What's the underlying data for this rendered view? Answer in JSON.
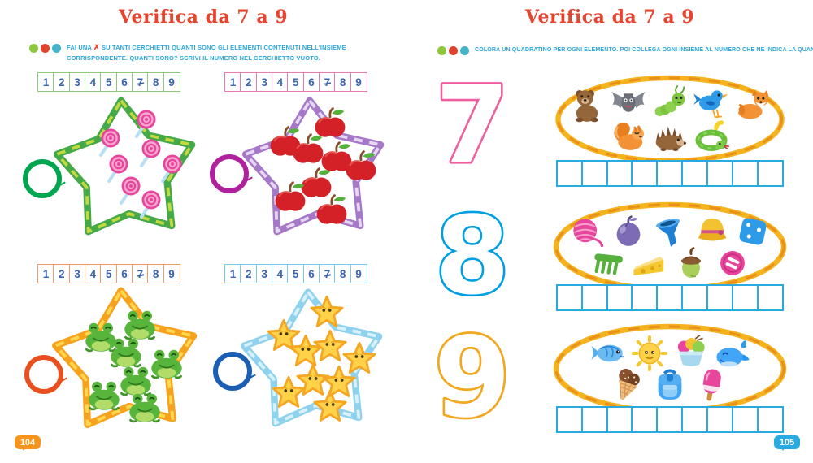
{
  "colors": {
    "title": "#e8432d",
    "instruction_text": "#2ba7dd",
    "strip_number": "#3a64ad"
  },
  "instruction_dot_colors": [
    "#8cc63e",
    "#e1432c",
    "#45b4c8"
  ],
  "left_page": {
    "title": "Verifica da 7 a 9",
    "instruction": {
      "pre": "FAI UNA",
      "x_mark": "✗",
      "post": "SU TANTI CERCHIETTI QUANTI SONO GLI ELEMENTI CONTENUTI NELL'INSIEME CORRISPONDENTE. QUANTI SONO? SCRIVI IL NUMERO NEL CERCHIETTO VUOTO."
    },
    "strip_numbers": [
      "1",
      "2",
      "3",
      "4",
      "5",
      "6",
      "7",
      "8",
      "9"
    ],
    "sets": [
      {
        "name": "lollipops",
        "item": "lollipop",
        "count": 7,
        "strip_color": "#8cc87e",
        "star_color": "#44a948",
        "star_accent": "#c3d93f",
        "circle_color": "#00a550"
      },
      {
        "name": "apples",
        "item": "apple",
        "count": 8,
        "strip_color": "#e879b5",
        "star_color": "#a678c8",
        "star_accent": "#e6d7f2",
        "circle_color": "#b0229d"
      },
      {
        "name": "frogs",
        "item": "frog",
        "count": 7,
        "strip_color": "#f09a6c",
        "star_color": "#f6a21d",
        "star_accent": "#ffd74f",
        "circle_color": "#e8511f"
      },
      {
        "name": "starfish",
        "item": "starfish",
        "count": 9,
        "strip_color": "#79c9e8",
        "star_color": "#8fd2ee",
        "star_accent": "#d9f1fb",
        "circle_color": "#1b5fb5"
      }
    ],
    "page_number": "104",
    "badge_color": "#f7941d"
  },
  "right_page": {
    "title": "Verifica da 7 a 9",
    "instruction": "COLORA UN QUADRATINO PER OGNI ELEMENTO. POI COLLEGA OGNI INSIEME AL NUMERO CHE NE INDICA LA QUANTITÀ.",
    "rows": [
      {
        "numeral": "7",
        "numeral_color": "#ee5fa0",
        "item_count": 8,
        "squares": 9,
        "items": [
          "bear",
          "bat",
          "caterpillar",
          "bird",
          "fox",
          "squirrel",
          "hedgehog",
          "snake"
        ]
      },
      {
        "numeral": "8",
        "numeral_color": "#009fe3",
        "item_count": 9,
        "squares": 9,
        "items": [
          "yarn-ball",
          "plum",
          "funnel",
          "hat",
          "die",
          "comb",
          "cheese",
          "acorn",
          "button"
        ]
      },
      {
        "numeral": "9",
        "numeral_color": "#f2a71f",
        "item_count": 7,
        "squares": 9,
        "items": [
          "fish",
          "sun",
          "ice-cream-cup",
          "whale",
          "ice-cream-cone",
          "backpack",
          "popsicle"
        ]
      }
    ],
    "oval_color": "#f5b31e",
    "oval_accent": "#e8901a",
    "square_color": "#29abe2",
    "page_number": "105",
    "badge_color": "#29abe2"
  }
}
